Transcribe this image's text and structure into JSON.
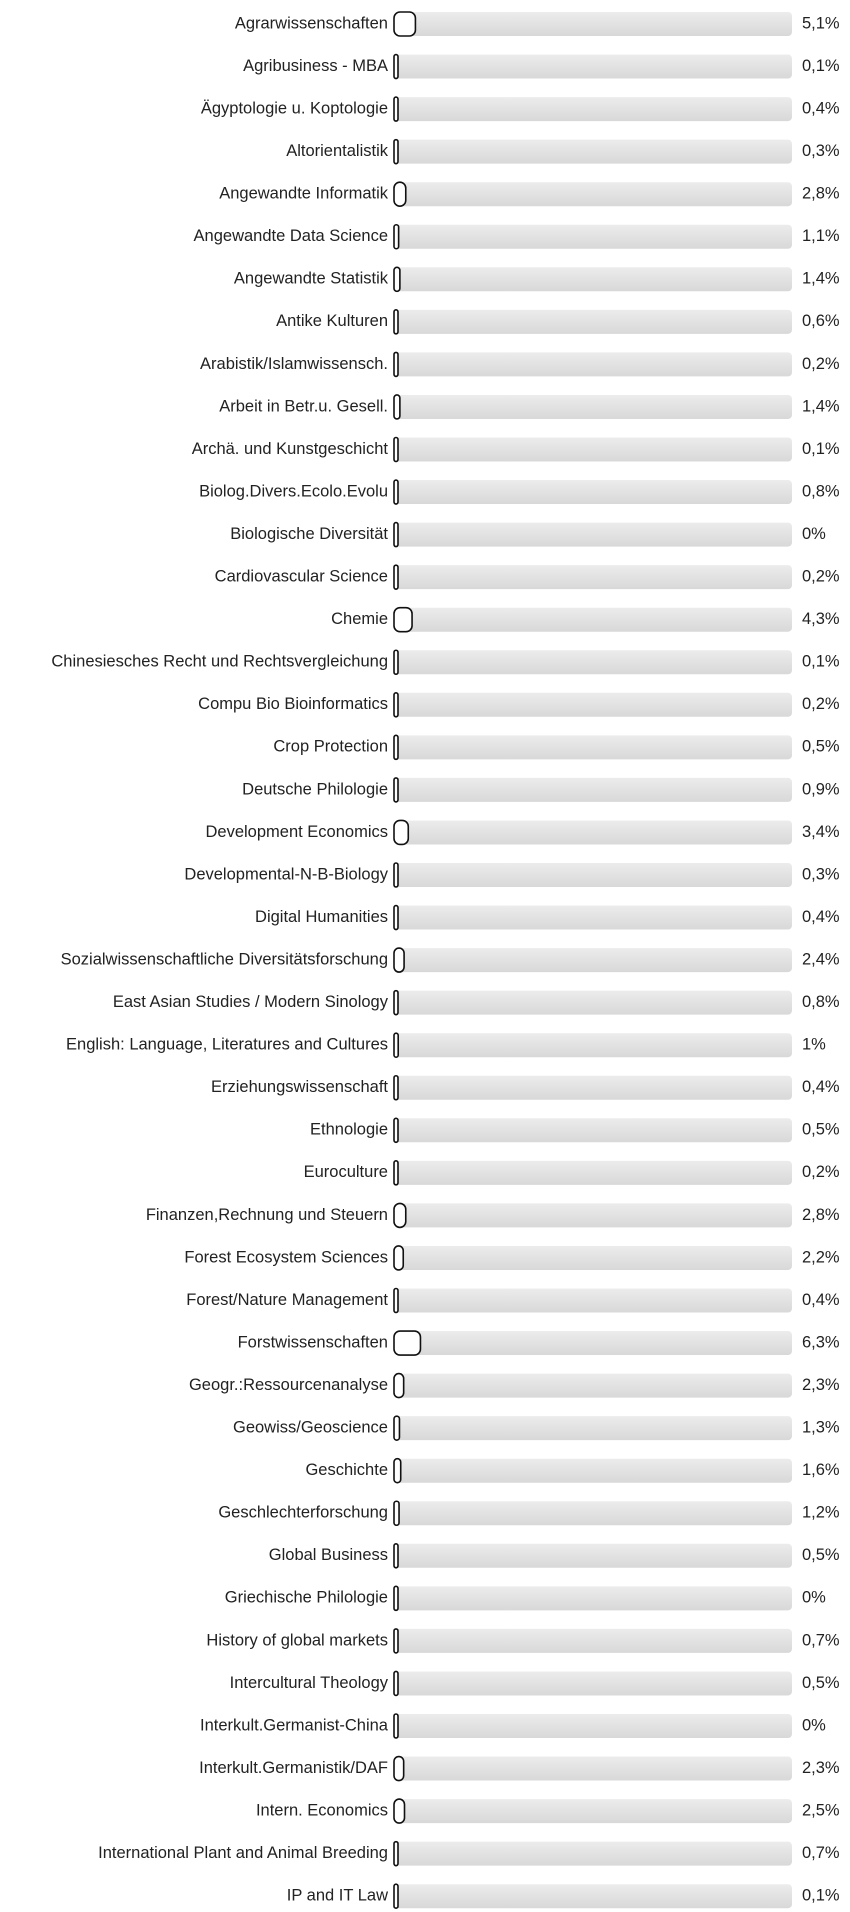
{
  "chart_data": {
    "type": "bar",
    "orientation": "horizontal",
    "categories": [
      "Agrarwissenschaften",
      "Agribusiness - MBA",
      "Ägyptologie u. Koptologie",
      "Altorientalistik",
      "Angewandte Informatik",
      "Angewandte Data Science",
      "Angewandte Statistik",
      "Antike Kulturen",
      "Arabistik/Islamwissensch.",
      "Arbeit in Betr.u. Gesell.",
      "Archä. und Kunstgeschicht",
      "Biolog.Divers.Ecolo.Evolu",
      "Biologische Diversität",
      "Cardiovascular Science",
      "Chemie",
      "Chinesiesches Recht und Rechtsvergleichung",
      "Compu Bio Bioinformatics",
      "Crop Protection",
      "Deutsche Philologie",
      "Development Economics",
      "Developmental-N-B-Biology",
      "Digital Humanities",
      "Sozialwissenschaftliche Diversitätsforschung",
      "East Asian Studies / Modern Sinology",
      "English: Language, Literatures and Cultures",
      "Erziehungswissenschaft",
      "Ethnologie",
      "Euroculture",
      "Finanzen,Rechnung und Steuern",
      "Forest Ecosystem Sciences",
      "Forest/Nature Management",
      "Forstwissenschaften",
      "Geogr.:Ressourcenanalyse",
      "Geowiss/Geoscience",
      "Geschichte",
      "Geschlechterforschung",
      "Global Business",
      "Griechische Philologie",
      "History of global markets",
      "Intercultural Theology",
      "Interkult.Germanist-China",
      "Interkult.Germanistik/DAF",
      "Intern. Economics",
      "International Plant and Animal Breeding",
      "IP and IT Law"
    ],
    "values": [
      5.1,
      0.1,
      0.4,
      0.3,
      2.8,
      1.1,
      1.4,
      0.6,
      0.2,
      1.4,
      0.1,
      0.8,
      0,
      0.2,
      4.3,
      0.1,
      0.2,
      0.5,
      0.9,
      3.4,
      0.3,
      0.4,
      2.4,
      0.8,
      1,
      0.4,
      0.5,
      0.2,
      2.8,
      2.2,
      0.4,
      6.3,
      2.3,
      1.3,
      1.6,
      1.2,
      0.5,
      0,
      0.7,
      0.5,
      0,
      2.3,
      2.5,
      0.7,
      0.1
    ],
    "value_labels": [
      "5,1%",
      "0,1%",
      "0,4%",
      "0,3%",
      "2,8%",
      "1,1%",
      "1,4%",
      "0,6%",
      "0,2%",
      "1,4%",
      "0,1%",
      "0,8%",
      "0%",
      "0,2%",
      "4,3%",
      "0,1%",
      "0,2%",
      "0,5%",
      "0,9%",
      "3,4%",
      "0,3%",
      "0,4%",
      "2,4%",
      "0,8%",
      "1%",
      "0,4%",
      "0,5%",
      "0,2%",
      "2,8%",
      "2,2%",
      "0,4%",
      "6,3%",
      "2,3%",
      "1,3%",
      "1,6%",
      "1,2%",
      "0,5%",
      "0%",
      "0,7%",
      "0,5%",
      "0%",
      "2,3%",
      "2,5%",
      "0,7%",
      "0,1%"
    ],
    "color": "#ffffff"
  }
}
